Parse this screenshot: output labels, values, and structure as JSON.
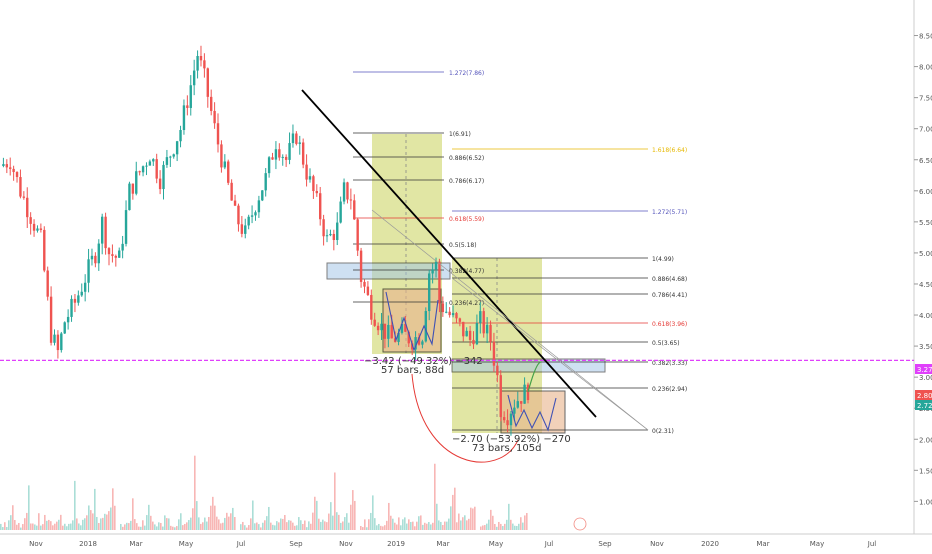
{
  "chart_data": {
    "type": "candlestick",
    "title": "",
    "xlabel": "",
    "ylabel": "",
    "ylim": [
      0.7,
      8.75
    ],
    "x_ticks": [
      "Nov",
      "2018",
      "Mar",
      "May",
      "Jul",
      "Sep",
      "Nov",
      "2019",
      "Mar",
      "May",
      "Jul",
      "Sep",
      "Nov",
      "2020",
      "Mar",
      "May",
      "Jul"
    ],
    "y_ticks": [
      "8.50",
      "8.00",
      "7.50",
      "7.00",
      "6.50",
      "6.00",
      "5.50",
      "5.00",
      "4.50",
      "4.00",
      "3.50",
      "3.00",
      "2.50",
      "2.00",
      "1.50",
      "1.00"
    ],
    "price_path": [
      [
        0,
        6.4
      ],
      [
        3,
        6.5
      ],
      [
        6,
        6.0
      ],
      [
        9,
        5.6
      ],
      [
        12,
        5.2
      ],
      [
        15,
        3.7
      ],
      [
        17,
        3.4
      ],
      [
        19,
        3.9
      ],
      [
        22,
        4.2
      ],
      [
        25,
        4.6
      ],
      [
        28,
        5.0
      ],
      [
        30,
        5.5
      ],
      [
        32,
        5.0
      ],
      [
        35,
        4.9
      ],
      [
        38,
        6.0
      ],
      [
        41,
        6.3
      ],
      [
        44,
        6.6
      ],
      [
        47,
        6.2
      ],
      [
        50,
        6.6
      ],
      [
        53,
        7.0
      ],
      [
        56,
        7.7
      ],
      [
        58,
        8.2
      ],
      [
        60,
        7.8
      ],
      [
        63,
        7.0
      ],
      [
        66,
        6.3
      ],
      [
        69,
        5.6
      ],
      [
        72,
        5.3
      ],
      [
        75,
        5.8
      ],
      [
        78,
        6.2
      ],
      [
        81,
        6.8
      ],
      [
        84,
        6.5
      ],
      [
        87,
        6.9
      ],
      [
        90,
        6.3
      ],
      [
        93,
        5.8
      ],
      [
        96,
        5.2
      ],
      [
        99,
        5.4
      ],
      [
        101,
        6.0
      ],
      [
        103,
        5.9
      ],
      [
        104,
        5.5
      ],
      [
        106,
        4.6
      ],
      [
        109,
        4.1
      ],
      [
        112,
        3.8
      ],
      [
        115,
        3.6
      ],
      [
        118,
        3.7
      ],
      [
        121,
        3.6
      ],
      [
        124,
        3.7
      ],
      [
        126,
        4.7
      ],
      [
        128,
        4.8
      ],
      [
        129,
        4.2
      ],
      [
        132,
        4.0
      ],
      [
        135,
        3.8
      ],
      [
        138,
        3.6
      ],
      [
        141,
        3.9
      ],
      [
        144,
        3.6
      ],
      [
        146,
        3.0
      ],
      [
        147,
        2.5
      ],
      [
        149,
        2.4
      ],
      [
        151,
        2.6
      ],
      [
        153,
        2.7
      ],
      [
        155,
        2.8
      ]
    ],
    "volume_values": [
      12,
      18,
      22,
      15,
      30,
      45,
      70,
      25,
      20,
      18,
      15,
      22,
      28,
      40,
      95,
      30,
      25,
      20,
      18,
      35,
      28,
      22,
      30,
      40,
      25,
      20,
      18,
      15,
      20,
      28,
      35,
      22,
      20,
      18,
      25,
      30,
      45,
      150,
      60,
      30,
      22,
      28,
      35,
      40,
      50,
      60,
      80,
      120,
      40,
      35,
      30,
      28,
      35,
      40,
      45,
      55,
      90,
      60,
      0,
      0
    ],
    "horizontal_line": {
      "value": 3.27,
      "label": "3.27"
    },
    "price_labels": [
      "2.80",
      "2.72"
    ],
    "fib_left": [
      {
        "label": "1.272(7.86)"
      },
      {
        "label": "1(6.91)"
      },
      {
        "label": "0.886(6.52)"
      },
      {
        "label": "0.786(6.17)"
      },
      {
        "label": "0.618(5.59)"
      },
      {
        "label": "0.5(5.18)"
      },
      {
        "label": "0.382(4.77)"
      },
      {
        "label": "0.236(4.27)"
      }
    ],
    "fib_right": [
      {
        "label": "1.618(6.64)"
      },
      {
        "label": "1.272(5.71)"
      },
      {
        "label": "1(4.99)"
      },
      {
        "label": "0.886(4.68)"
      },
      {
        "label": "0.786(4.41)"
      },
      {
        "label": "0.618(3.96)"
      },
      {
        "label": "0.5(3.65)"
      },
      {
        "label": "0.382(3.33)"
      },
      {
        "label": "0.236(2.94)"
      },
      {
        "label": "0(2.31)"
      }
    ],
    "annotations": [
      {
        "text": "−3.42 (−49.32%) −342"
      },
      {
        "text": "57 bars, 88d"
      },
      {
        "text": "−2.70 (−53.92%) −270"
      },
      {
        "text": "73 bars, 105d"
      }
    ],
    "colors": {
      "up": "#26a69a",
      "down": "#ef5350",
      "trendline": "#000000",
      "fib_box": "#c8d25a",
      "measure_box": "#e8b48c",
      "hline": "#e040fb"
    }
  }
}
